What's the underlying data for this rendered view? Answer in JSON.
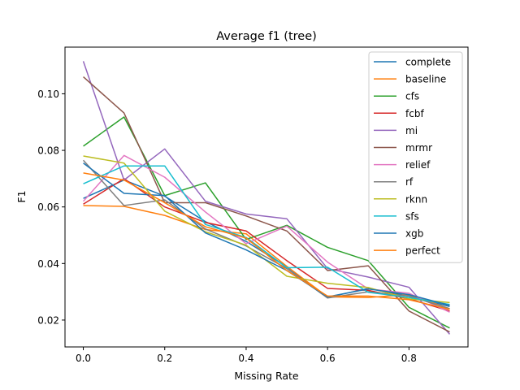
{
  "chart_data": {
    "type": "line",
    "title": "Average f1 (tree)",
    "xlabel": "Missing Rate",
    "ylabel": "F1",
    "xlim": [
      -0.045,
      0.945
    ],
    "ylim": [
      0.0105,
      0.1165
    ],
    "xticks": [
      0.0,
      0.2,
      0.4,
      0.6,
      0.8
    ],
    "yticks": [
      0.02,
      0.04,
      0.06,
      0.08,
      0.1
    ],
    "xtick_labels": [
      "0.0",
      "0.2",
      "0.4",
      "0.6",
      "0.8"
    ],
    "ytick_labels": [
      "0.02",
      "0.04",
      "0.06",
      "0.08",
      "0.10"
    ],
    "grid": false,
    "legend_position": "top-right",
    "x": [
      0.0,
      0.1,
      0.2,
      0.3,
      0.4,
      0.5,
      0.6,
      0.7,
      0.8,
      0.9
    ],
    "series": [
      {
        "name": "complete",
        "color": "#1f77b4",
        "values": [
          0.063,
          0.0695,
          0.0638,
          0.0548,
          0.0478,
          0.0388,
          0.028,
          0.0312,
          0.0285,
          0.0248
        ]
      },
      {
        "name": "baseline",
        "color": "#ff7f0e",
        "values": [
          0.0605,
          0.0602,
          0.057,
          0.052,
          0.0505,
          0.039,
          0.0282,
          0.028,
          0.029,
          0.024
        ]
      },
      {
        "name": "cfs",
        "color": "#2ca02c",
        "values": [
          0.0815,
          0.0918,
          0.064,
          0.0685,
          0.0485,
          0.0535,
          0.0457,
          0.041,
          0.0245,
          0.0172
        ]
      },
      {
        "name": "fcbf",
        "color": "#d62728",
        "values": [
          0.061,
          0.07,
          0.06,
          0.0545,
          0.0515,
          0.041,
          0.0312,
          0.0305,
          0.0275,
          0.0232
        ]
      },
      {
        "name": "mi",
        "color": "#9467bd",
        "values": [
          0.1115,
          0.0695,
          0.0805,
          0.062,
          0.0575,
          0.0558,
          0.0382,
          0.0352,
          0.0316,
          0.015
        ]
      },
      {
        "name": "mrmr",
        "color": "#8c564b",
        "values": [
          0.106,
          0.0932,
          0.0615,
          0.0615,
          0.0568,
          0.0515,
          0.0375,
          0.0392,
          0.0232,
          0.0158
        ]
      },
      {
        "name": "relief",
        "color": "#e377c2",
        "values": [
          0.062,
          0.0782,
          0.0705,
          0.0582,
          0.047,
          0.0532,
          0.0405,
          0.031,
          0.0295,
          0.0228
        ]
      },
      {
        "name": "rf",
        "color": "#7f7f7f",
        "values": [
          0.0765,
          0.0605,
          0.0625,
          0.0522,
          0.0462,
          0.0382,
          0.0278,
          0.03,
          0.0285,
          0.024
        ]
      },
      {
        "name": "rknn",
        "color": "#bcbd22",
        "values": [
          0.078,
          0.0755,
          0.0585,
          0.0512,
          0.0465,
          0.0355,
          0.033,
          0.0315,
          0.0275,
          0.0262
        ]
      },
      {
        "name": "sfs",
        "color": "#17becf",
        "values": [
          0.0682,
          0.0745,
          0.0745,
          0.0538,
          0.0492,
          0.0385,
          0.0387,
          0.0298,
          0.028,
          0.0255
        ]
      },
      {
        "name": "xgb",
        "color": "#1f77b4",
        "values": [
          0.0755,
          0.0648,
          0.064,
          0.0508,
          0.0448,
          0.0375,
          0.0282,
          0.031,
          0.029,
          0.0252
        ]
      },
      {
        "name": "perfect",
        "color": "#ff7f0e",
        "values": [
          0.072,
          0.0695,
          0.0615,
          0.053,
          0.049,
          0.0375,
          0.0285,
          0.0285,
          0.0272,
          0.0238
        ]
      }
    ]
  }
}
